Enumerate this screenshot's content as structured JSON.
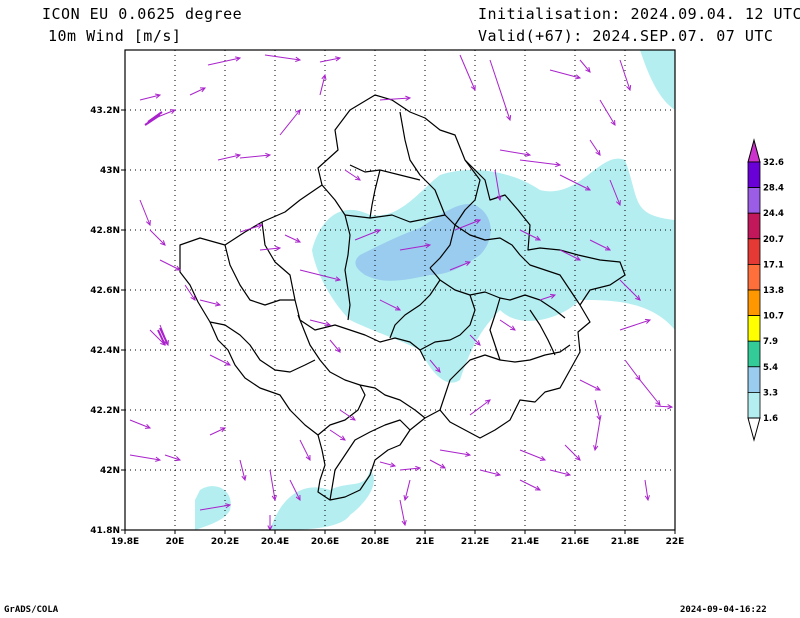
{
  "header": {
    "model": "ICON EU 0.0625 degree",
    "field": "10m Wind [m/s]",
    "init": "Initialisation: 2024.09.04. 12 UTC",
    "valid": "Valid(+67): 2024.SEP.07. 07 UTC"
  },
  "map": {
    "lon_ticks": [
      "19.8E",
      "20E",
      "20.2E",
      "20.4E",
      "20.6E",
      "20.8E",
      "21E",
      "21.2E",
      "21.4E",
      "21.6E",
      "21.8E",
      "22E"
    ],
    "lat_ticks": [
      "43.2N",
      "43N",
      "42.8N",
      "42.6N",
      "42.4N",
      "42.2N",
      "42N",
      "41.8N"
    ],
    "lon_range": [
      19.8,
      22.0
    ],
    "lat_range": [
      41.8,
      43.4
    ],
    "grid": true,
    "contour_color": "#b4eef0",
    "contour_color_2": "#99ccee",
    "wind_vector_color": "#aa22cc"
  },
  "colorbar": {
    "labels": [
      "32.6",
      "28.4",
      "24.4",
      "20.7",
      "17.1",
      "13.8",
      "10.7",
      "7.9",
      "5.4",
      "3.3",
      "1.6"
    ],
    "colors": [
      "#6a00d8",
      "#9b5de5",
      "#c2185b",
      "#e53935",
      "#ff6f3c",
      "#ff9800",
      "#ffff00",
      "#33cc99",
      "#99ccee",
      "#b4eef0"
    ],
    "top_color": "#cc33cc"
  },
  "footer": {
    "left": "GrADS/COLA",
    "right": "2024-09-04-16:22"
  }
}
